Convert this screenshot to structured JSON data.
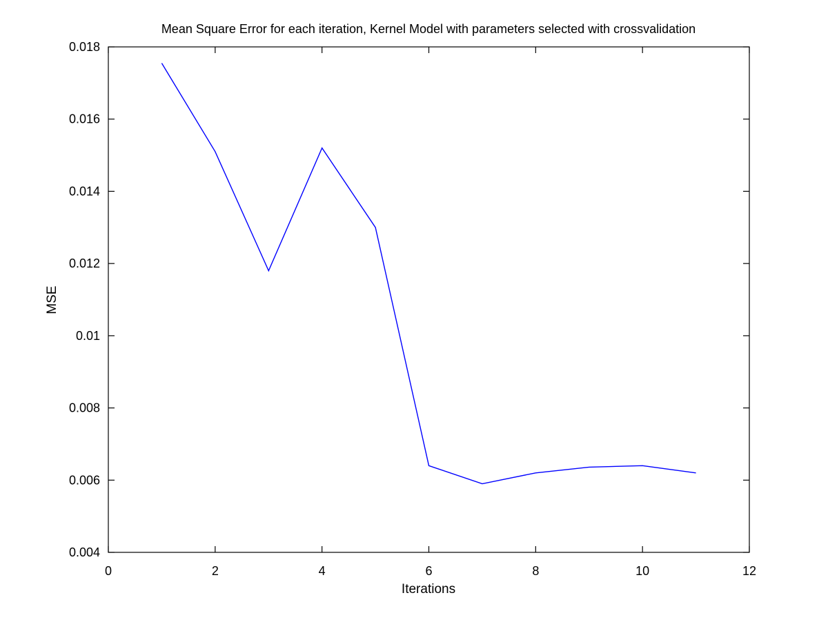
{
  "chart_data": {
    "type": "line",
    "title": "Mean Square Error for each iteration, Kernel Model with parameters selected with crossvalidation",
    "xlabel": "Iterations",
    "ylabel": "MSE",
    "xlim": [
      0,
      12
    ],
    "ylim": [
      0.004,
      0.018
    ],
    "xticks": [
      0,
      2,
      4,
      6,
      8,
      10,
      12
    ],
    "xtick_labels": [
      "0",
      "2",
      "4",
      "6",
      "8",
      "10",
      "12"
    ],
    "yticks": [
      0.004,
      0.006,
      0.008,
      0.01,
      0.012,
      0.014,
      0.016,
      0.018
    ],
    "ytick_labels": [
      "0.004",
      "0.006",
      "0.008",
      "0.01",
      "0.012",
      "0.014",
      "0.016",
      "0.018"
    ],
    "grid": false,
    "legend": "none",
    "series": [
      {
        "color": "#0000ff",
        "x": [
          1,
          2,
          3,
          4,
          5,
          6,
          7,
          8,
          9,
          10,
          11
        ],
        "y": [
          0.01755,
          0.0151,
          0.0118,
          0.0152,
          0.013,
          0.0064,
          0.0059,
          0.0062,
          0.00636,
          0.0064,
          0.0062
        ]
      }
    ]
  }
}
